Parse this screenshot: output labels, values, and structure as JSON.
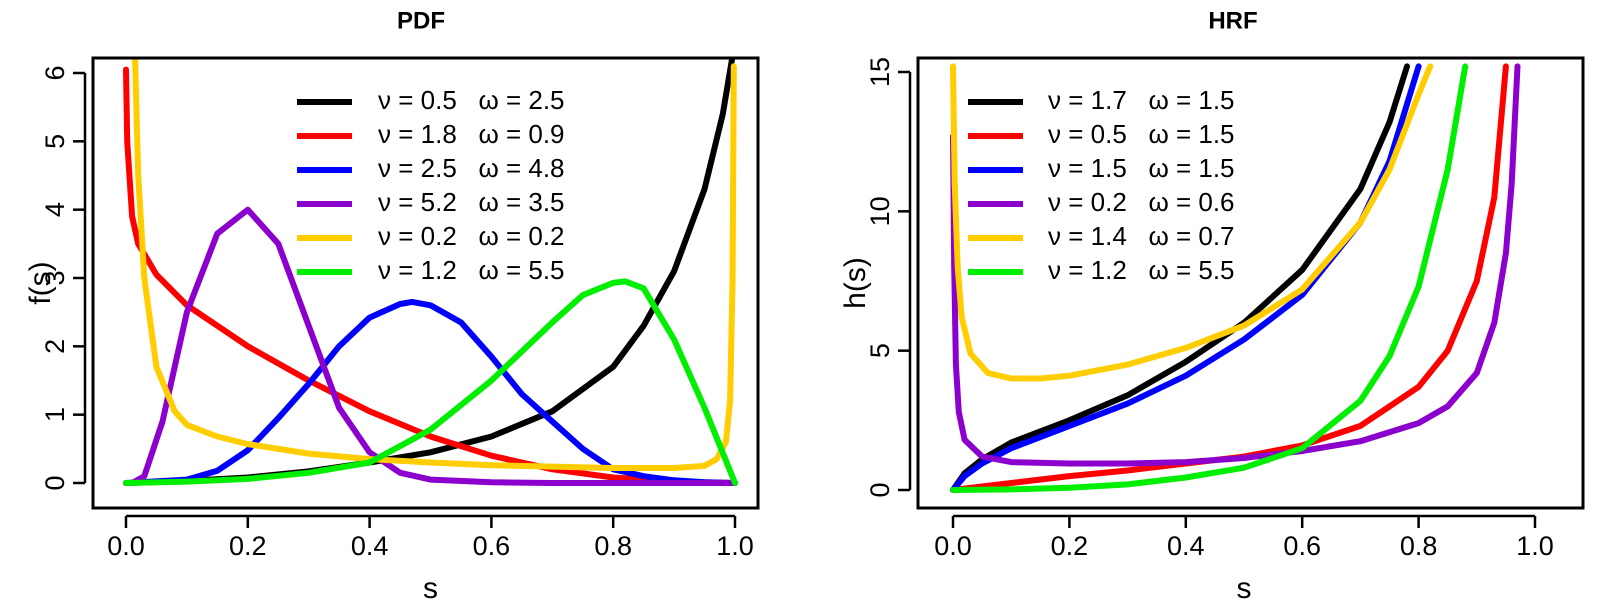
{
  "colors": {
    "black": "#000000",
    "red": "#ff0000",
    "blue": "#0000ff",
    "purple": "#8b00cd",
    "gold": "#ffcd00",
    "green": "#00ee00"
  },
  "chart_data": [
    {
      "type": "line",
      "title": "PDF",
      "xlabel": "s",
      "ylabel": "f(s)",
      "xlim": [
        0,
        1
      ],
      "ylim": [
        0,
        6
      ],
      "xticks": [
        "0.0",
        "0.2",
        "0.4",
        "0.6",
        "0.8",
        "1.0"
      ],
      "yticks": [
        "0",
        "1",
        "2",
        "3",
        "4",
        "5",
        "6"
      ],
      "legend_position": "top-right",
      "series": [
        {
          "name": "ν = 0.5   ω = 2.5",
          "color": "#000000",
          "x": [
            0,
            0.1,
            0.2,
            0.3,
            0.4,
            0.5,
            0.6,
            0.7,
            0.8,
            0.85,
            0.9,
            0.95,
            0.98,
            0.995
          ],
          "y": [
            0,
            0.03,
            0.08,
            0.17,
            0.3,
            0.45,
            0.68,
            1.05,
            1.7,
            2.3,
            3.1,
            4.3,
            5.4,
            6.2
          ]
        },
        {
          "name": "ν = 1.8   ω = 0.9",
          "color": "#ff0000",
          "x": [
            0,
            0.002,
            0.01,
            0.02,
            0.05,
            0.1,
            0.2,
            0.3,
            0.4,
            0.5,
            0.6,
            0.7,
            0.8,
            0.9,
            1.0
          ],
          "y": [
            6.05,
            5.0,
            3.9,
            3.5,
            3.05,
            2.6,
            2.0,
            1.5,
            1.05,
            0.68,
            0.4,
            0.2,
            0.08,
            0.02,
            0
          ]
        },
        {
          "name": "ν = 2.5   ω = 4.8",
          "color": "#0000ff",
          "x": [
            0,
            0.1,
            0.15,
            0.2,
            0.25,
            0.3,
            0.35,
            0.4,
            0.45,
            0.47,
            0.5,
            0.55,
            0.6,
            0.65,
            0.7,
            0.75,
            0.8,
            0.85,
            0.9,
            0.95,
            1.0
          ],
          "y": [
            0,
            0.05,
            0.18,
            0.48,
            0.95,
            1.45,
            2.0,
            2.42,
            2.62,
            2.65,
            2.6,
            2.35,
            1.85,
            1.3,
            0.9,
            0.5,
            0.2,
            0.1,
            0.04,
            0.01,
            0
          ]
        },
        {
          "name": "ν = 5.2   ω = 3.5",
          "color": "#8b00cd",
          "x": [
            0.01,
            0.03,
            0.06,
            0.1,
            0.15,
            0.2,
            0.25,
            0.3,
            0.35,
            0.4,
            0.45,
            0.5,
            0.6,
            0.7,
            0.8,
            1.0
          ],
          "y": [
            0,
            0.1,
            0.9,
            2.5,
            3.65,
            4.0,
            3.5,
            2.3,
            1.1,
            0.45,
            0.15,
            0.05,
            0.01,
            0,
            0,
            0
          ]
        },
        {
          "name": "ν = 0.2   ω = 0.2",
          "color": "#ffcd00",
          "x": [
            0.015,
            0.02,
            0.03,
            0.05,
            0.08,
            0.1,
            0.15,
            0.2,
            0.3,
            0.4,
            0.5,
            0.6,
            0.7,
            0.8,
            0.9,
            0.95,
            0.97,
            0.985,
            0.992,
            0.996,
            0.998
          ],
          "y": [
            6.2,
            4.5,
            3.0,
            1.7,
            1.05,
            0.85,
            0.68,
            0.57,
            0.43,
            0.35,
            0.3,
            0.26,
            0.24,
            0.22,
            0.22,
            0.25,
            0.35,
            0.6,
            1.2,
            3.0,
            6.1
          ]
        },
        {
          "name": "ν = 1.2   ω = 5.5",
          "color": "#00ee00",
          "x": [
            0,
            0.1,
            0.2,
            0.3,
            0.4,
            0.5,
            0.6,
            0.7,
            0.75,
            0.8,
            0.82,
            0.85,
            0.9,
            0.95,
            1.0
          ],
          "y": [
            0,
            0.02,
            0.06,
            0.15,
            0.3,
            0.78,
            1.5,
            2.35,
            2.75,
            2.93,
            2.95,
            2.85,
            2.1,
            1.1,
            0
          ]
        }
      ]
    },
    {
      "type": "line",
      "title": "HRF",
      "xlabel": "s",
      "ylabel": "h(s)",
      "xlim": [
        0,
        1
      ],
      "ylim": [
        0,
        15
      ],
      "xticks": [
        "0.0",
        "0.2",
        "0.4",
        "0.6",
        "0.8",
        "1.0"
      ],
      "yticks": [
        "0",
        "5",
        "10",
        "15"
      ],
      "legend_position": "top-left",
      "series": [
        {
          "name": "ν = 1.7   ω = 1.5",
          "color": "#000000",
          "x": [
            0,
            0.02,
            0.05,
            0.1,
            0.2,
            0.3,
            0.4,
            0.5,
            0.6,
            0.7,
            0.75,
            0.78
          ],
          "y": [
            0,
            0.6,
            1.1,
            1.7,
            2.5,
            3.4,
            4.6,
            6.0,
            7.9,
            10.8,
            13.2,
            15.2
          ]
        },
        {
          "name": "ν = 0.5   ω = 1.5",
          "color": "#ff0000",
          "x": [
            0,
            0.1,
            0.2,
            0.3,
            0.4,
            0.5,
            0.6,
            0.7,
            0.8,
            0.85,
            0.9,
            0.93,
            0.95
          ],
          "y": [
            0,
            0.25,
            0.5,
            0.7,
            0.95,
            1.2,
            1.6,
            2.3,
            3.7,
            5.0,
            7.5,
            10.5,
            15.2
          ]
        },
        {
          "name": "ν = 1.5   ω = 1.5",
          "color": "#0000ff",
          "x": [
            0,
            0.02,
            0.05,
            0.1,
            0.2,
            0.3,
            0.4,
            0.5,
            0.6,
            0.7,
            0.75,
            0.8
          ],
          "y": [
            0,
            0.5,
            0.95,
            1.5,
            2.3,
            3.1,
            4.1,
            5.4,
            7.0,
            9.6,
            11.8,
            15.2
          ]
        },
        {
          "name": "ν = 0.2   ω = 0.6",
          "color": "#8b00cd",
          "x": [
            0,
            0.002,
            0.005,
            0.01,
            0.02,
            0.05,
            0.1,
            0.2,
            0.3,
            0.4,
            0.5,
            0.6,
            0.7,
            0.8,
            0.85,
            0.9,
            0.93,
            0.95,
            0.96,
            0.97
          ],
          "y": [
            12.7,
            8.0,
            4.5,
            2.8,
            1.8,
            1.2,
            1.0,
            0.95,
            0.95,
            1.0,
            1.15,
            1.4,
            1.75,
            2.4,
            3.0,
            4.2,
            6.0,
            8.5,
            11.0,
            15.2
          ]
        },
        {
          "name": "ν = 1.4   ω = 0.7",
          "color": "#ffcd00",
          "x": [
            0,
            0.003,
            0.008,
            0.015,
            0.03,
            0.06,
            0.1,
            0.15,
            0.2,
            0.3,
            0.4,
            0.5,
            0.6,
            0.7,
            0.75,
            0.8,
            0.82
          ],
          "y": [
            15.2,
            11.0,
            8.0,
            6.2,
            4.9,
            4.2,
            4.0,
            4.0,
            4.1,
            4.5,
            5.1,
            5.9,
            7.2,
            9.6,
            11.5,
            14.2,
            15.2
          ]
        },
        {
          "name": "ν = 1.2   ω = 5.5",
          "color": "#00ee00",
          "x": [
            0,
            0.1,
            0.2,
            0.3,
            0.4,
            0.5,
            0.6,
            0.7,
            0.75,
            0.8,
            0.85,
            0.88
          ],
          "y": [
            0,
            0.02,
            0.08,
            0.2,
            0.45,
            0.8,
            1.5,
            3.2,
            4.8,
            7.3,
            11.5,
            15.2
          ]
        }
      ]
    }
  ]
}
